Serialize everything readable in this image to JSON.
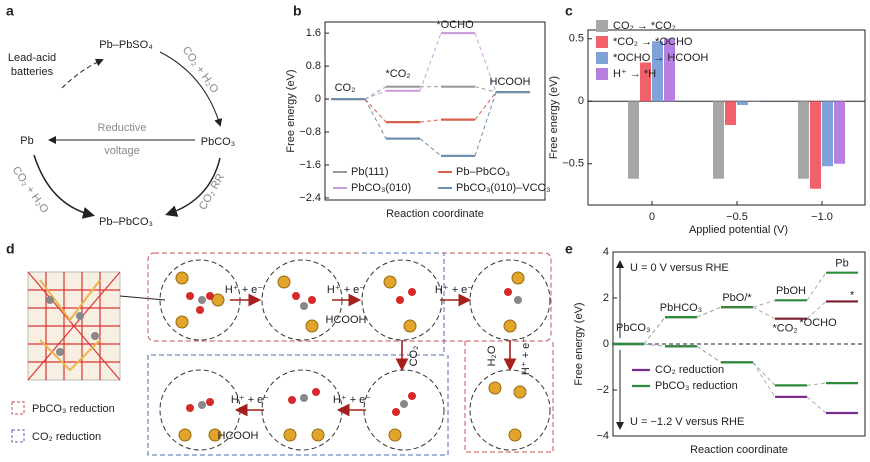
{
  "panel_labels": [
    "a",
    "b",
    "c",
    "d",
    "e"
  ],
  "panel_a": {
    "lead_acid": [
      "Lead-acid",
      "batteries"
    ],
    "pb_pbso4": "Pb–PbSO₄",
    "co2_h2o_top": "CO₂ + H₂O",
    "pbco3": "PbCO₃",
    "reductive": [
      "Reductive",
      "voltage"
    ],
    "pb": "Pb",
    "co2_h2o_left": "CO₂ + H₂O",
    "co2rr": "CO₂ RR",
    "pb_pbco3": "Pb–PbCO₃"
  },
  "panel_d": {
    "labels": [
      "H⁺ + e⁻",
      "H⁺ + e⁻",
      "HCOOH",
      "H⁺ + e⁻",
      "CO₂",
      "H₂O",
      "H⁺ + e⁻",
      "H⁺ + e⁻",
      "H⁺ + e⁻",
      "HCOOH"
    ],
    "legend": [
      "PbCO₃ reduction",
      "CO₂ reduction"
    ]
  },
  "chart_data": [
    {
      "type": "energy-diagram",
      "ylabel": "Free energy (eV)",
      "xlabel": "Reaction coordinate",
      "level_labels": [
        "CO₂",
        "*CO₂",
        "*OCHO",
        "HCOOH"
      ],
      "series": [
        {
          "name": "Pb(111)",
          "color": "#9a9a9a",
          "values": [
            0,
            0.3,
            0.3,
            0.17
          ]
        },
        {
          "name": "Pb–PbCO₃",
          "color": "#d9604a",
          "values": [
            0,
            -0.56,
            -0.5,
            0.17
          ]
        },
        {
          "name": "PbCO₃(010)",
          "color": "#c9a0dc",
          "values": [
            0,
            0.2,
            1.6,
            0.17
          ]
        },
        {
          "name": "PbCO₃(010)–VCO₃",
          "color": "#6f8fae",
          "values": [
            0,
            -0.96,
            -1.38,
            0.17
          ]
        }
      ],
      "ylim": [
        -2.45,
        1.87
      ],
      "yticks": [
        1.6,
        0.8,
        0,
        {
          "value": -0.8,
          "label": "−0.8"
        },
        {
          "value": -1.6,
          "label": "−1.6"
        },
        {
          "value": -2.4,
          "label": "−2.4"
        }
      ]
    },
    {
      "type": "bar",
      "ylabel": "Free energy (eV)",
      "xlabel": "Applied potential (V)",
      "categories": [
        "0",
        "−0.5",
        "−1.0"
      ],
      "series": [
        {
          "name": "CO₂ → *CO₂",
          "color": "#a6a6a6",
          "values": [
            -0.62,
            -0.62,
            -0.62
          ]
        },
        {
          "name": "*CO₂ → *OCHO",
          "color": "#f2616a",
          "values": [
            0.31,
            -0.19,
            -0.7
          ]
        },
        {
          "name": "*OCHO → HCOOH",
          "color": "#7fa3d9",
          "values": [
            0.48,
            -0.03,
            -0.52
          ]
        },
        {
          "name": "H⁺ → *H",
          "color": "#b77fe0",
          "values": [
            0.5,
            0,
            -0.5
          ]
        }
      ],
      "ylim": [
        -0.83,
        0.57
      ],
      "yticks": [
        0.5,
        0,
        {
          "value": -0.5,
          "label": "−0.5"
        }
      ]
    },
    {
      "type": "energy-diagram",
      "ylabel": "Free energy (eV)",
      "xlabel": "Reaction coordinate",
      "annotations": [
        "U = 0 V versus RHE",
        "U = −1.2 V versus RHE",
        "*OCHO"
      ],
      "series": [
        {
          "name": "CO₂ reduction",
          "color": "#7b2d8e",
          "upper_color": "#7a1f2b",
          "x": [
            0,
            1,
            2,
            3,
            4
          ],
          "values": [
            0,
            -0.1,
            -0.8,
            -2.3,
            -3.0
          ],
          "upper_values": [
            0,
            1.17,
            1.6,
            1.1,
            1.85
          ],
          "level_labels": [
            "PbCO₃",
            "PbHCO₃",
            "PbO/*",
            "*CO₂",
            "*"
          ]
        },
        {
          "name": "PbCO₃ reduction",
          "color": "#2e8b3a",
          "upper_color": "#2e8b3a",
          "x": [
            0,
            1,
            2,
            3,
            4
          ],
          "values": [
            0,
            -0.1,
            -0.8,
            -1.8,
            -1.7
          ],
          "upper_values": [
            0,
            1.17,
            1.6,
            1.9,
            3.1
          ],
          "level_labels": [
            null,
            null,
            null,
            "PbOH",
            "Pb"
          ]
        }
      ],
      "ylim": [
        -4,
        4
      ],
      "yticks": [
        4,
        2,
        0,
        {
          "value": -2,
          "label": "−2"
        },
        {
          "value": -4,
          "label": "−4"
        }
      ]
    }
  ]
}
